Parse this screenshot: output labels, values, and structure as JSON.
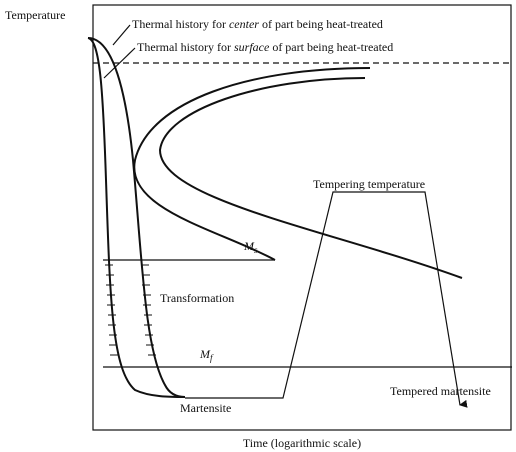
{
  "y_axis_label": "Temperature",
  "x_axis_label": "Time (logarithmic scale)",
  "center_history": {
    "prefix": "Thermal history for ",
    "emphasis": "center",
    "suffix": " of part being heat-treated"
  },
  "surface_history": {
    "prefix": "Thermal history for ",
    "emphasis": "surface",
    "suffix": " of part being heat-treated"
  },
  "ms_label": {
    "symbol": "M",
    "subscript": "s"
  },
  "mf_label": {
    "symbol": "M",
    "subscript": "f"
  },
  "transformation_label": "Transformation",
  "martensite_label": "Martensite",
  "tempering_label": "Tempering temperature",
  "tempered_label": "Tempered martensite"
}
